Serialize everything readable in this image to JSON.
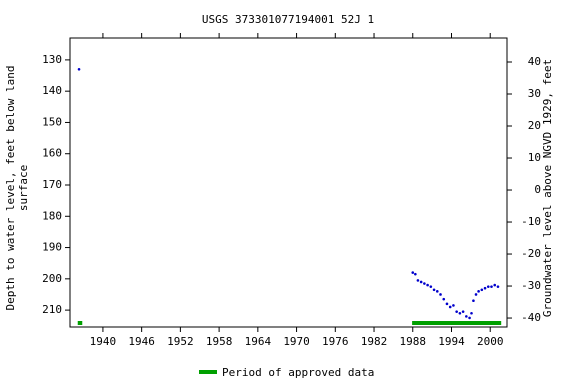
{
  "chart_data": {
    "type": "scatter",
    "title": "USGS 373301077194001 52J  1",
    "y_label": "Depth to water level, feet below land",
    "y_label_2": "surface",
    "y2_label": "Groundwater level above NGVD 1929, feet",
    "xlim": [
      1934.9,
      2002.6
    ],
    "xticks": [
      1940,
      1946,
      1952,
      1958,
      1964,
      1970,
      1976,
      1982,
      1988,
      1994,
      2000
    ],
    "ylim": [
      123,
      215.4
    ],
    "inverted": true,
    "yticks": [
      130,
      140,
      150,
      160,
      170,
      180,
      190,
      200,
      210
    ],
    "y2lim": [
      47.5,
      -42.8
    ],
    "y2ticks": [
      40,
      30,
      20,
      10,
      0,
      -10,
      -20,
      -30,
      -40
    ],
    "series": [
      {
        "name": "Depth to water level",
        "color": "#0000cc",
        "x": [
          1936.3,
          1988.0,
          1988.4,
          1988.8,
          1989.3,
          1989.8,
          1990.3,
          1990.8,
          1991.3,
          1991.8,
          1992.3,
          1992.8,
          1993.3,
          1993.8,
          1994.3,
          1994.8,
          1995.3,
          1995.8,
          1996.3,
          1996.8,
          1997.1,
          1997.4,
          1997.8,
          1998.2,
          1998.7,
          1999.2,
          1999.7,
          2000.2,
          2000.7,
          2001.2
        ],
        "values": [
          133,
          198,
          198.5,
          200.5,
          201,
          201.5,
          202,
          202.5,
          203.5,
          204,
          205,
          206.5,
          208,
          209,
          208.5,
          210.5,
          211,
          210.5,
          212,
          212.5,
          211,
          207,
          205,
          204,
          203.5,
          203,
          202.5,
          202.5,
          202,
          202.5
        ]
      }
    ],
    "approved": {
      "name": "Period of approved data",
      "color": "#00a000",
      "periods": [
        [
          1936.1,
          1936.8
        ],
        [
          1987.9,
          2001.7
        ]
      ]
    }
  }
}
